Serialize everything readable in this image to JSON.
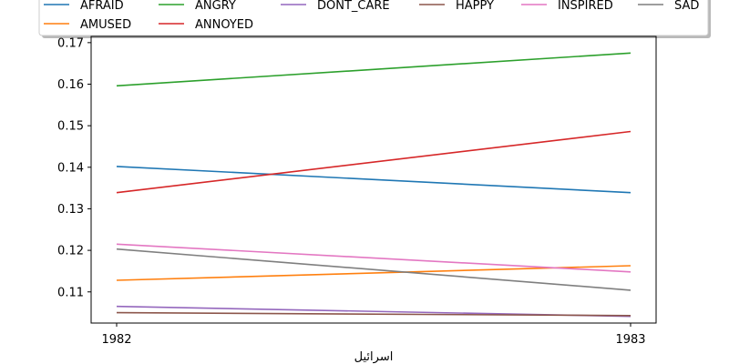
{
  "chart_data": {
    "type": "line",
    "xlabel": "اسرائيل",
    "ylabel": "",
    "x": [
      "1982",
      "1983"
    ],
    "ylim": [
      0.1025,
      0.1715
    ],
    "yticks": [
      "0.11",
      "0.12",
      "0.13",
      "0.14",
      "0.15",
      "0.16",
      "0.17"
    ],
    "legend_position": "top",
    "grid": false,
    "series": [
      {
        "name": "AFRAID",
        "color": "#1f77b4",
        "values": [
          0.1402,
          0.1339
        ]
      },
      {
        "name": "AMUSED",
        "color": "#ff7f0e",
        "values": [
          0.1128,
          0.1163
        ]
      },
      {
        "name": "ANGRY",
        "color": "#2ca02c",
        "values": [
          0.1596,
          0.1675
        ]
      },
      {
        "name": "ANNOYED",
        "color": "#d62728",
        "values": [
          0.1339,
          0.1486
        ]
      },
      {
        "name": "DONT_CARE",
        "color": "#9467bd",
        "values": [
          0.1065,
          0.1041
        ]
      },
      {
        "name": "HAPPY",
        "color": "#8c564b",
        "values": [
          0.105,
          0.1043
        ]
      },
      {
        "name": "INSPIRED",
        "color": "#e377c2",
        "values": [
          0.1215,
          0.1148
        ]
      },
      {
        "name": "SAD",
        "color": "#7f7f7f",
        "values": [
          0.1203,
          0.1104
        ]
      }
    ]
  }
}
